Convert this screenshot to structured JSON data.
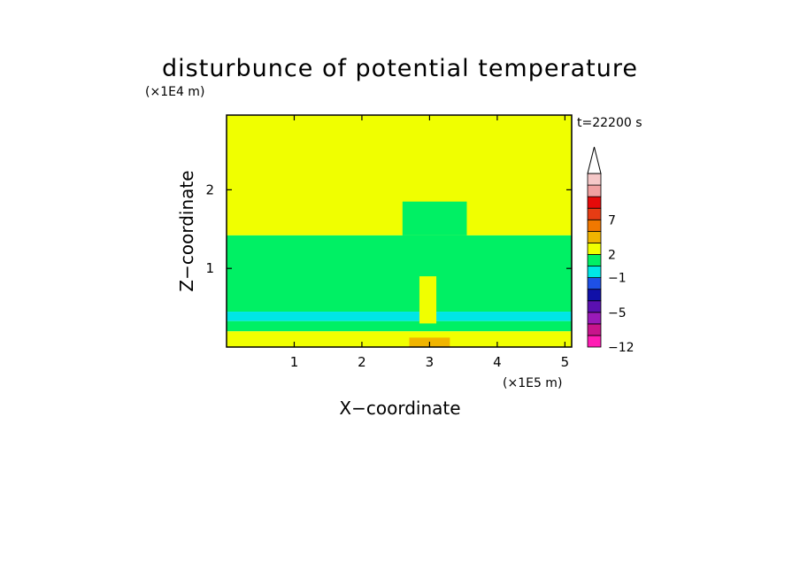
{
  "chart_data": {
    "type": "heatmap",
    "title": "disturbunce of potential temperature",
    "time_label": "t=22200 s",
    "xlabel": "X−coordinate",
    "ylabel": "Z−coordinate",
    "x_scale_label": "(×1E5 m)",
    "y_scale_label": "(×1E4 m)",
    "xlim": [
      0,
      5.1
    ],
    "ylim": [
      0,
      2.95
    ],
    "x_ticks": [
      {
        "value": 1,
        "label": "1"
      },
      {
        "value": 2,
        "label": "2"
      },
      {
        "value": 3,
        "label": "3"
      },
      {
        "value": 4,
        "label": "4"
      },
      {
        "value": 5,
        "label": "5"
      }
    ],
    "y_ticks": [
      {
        "value": 1,
        "label": "1"
      },
      {
        "value": 2,
        "label": "2"
      }
    ],
    "colorbar": {
      "levels": [
        {
          "color": "#ff1cb4",
          "label": "−12"
        },
        {
          "color": "#c8148c",
          "label": ""
        },
        {
          "color": "#9a1ab8",
          "label": ""
        },
        {
          "color": "#5a10b0",
          "label": "−5"
        },
        {
          "color": "#1010a8",
          "label": ""
        },
        {
          "color": "#1e50e6",
          "label": ""
        },
        {
          "color": "#00e6e6",
          "label": "−1"
        },
        {
          "color": "#00f064",
          "label": ""
        },
        {
          "color": "#f0ff00",
          "label": "2"
        },
        {
          "color": "#f0b400",
          "label": ""
        },
        {
          "color": "#f07800",
          "label": ""
        },
        {
          "color": "#e63c14",
          "label": "7"
        },
        {
          "color": "#e60a0a",
          "label": ""
        },
        {
          "color": "#f0a0a0",
          "label": ""
        },
        {
          "color": "#f5c8c8",
          "label": ""
        }
      ]
    },
    "regions": [
      {
        "color": "#f0ff00",
        "description": "background upper layer",
        "x": [
          0,
          5.1
        ],
        "z": [
          1.42,
          2.95
        ]
      },
      {
        "color": "#00f064",
        "description": "mid-level layer",
        "x": [
          0,
          5.1
        ],
        "z": [
          0.45,
          1.42
        ]
      },
      {
        "color": "#00e6e6",
        "description": "cool band",
        "x": [
          0,
          5.1
        ],
        "z": [
          0.33,
          0.45
        ]
      },
      {
        "color": "#00f064",
        "description": "band below cool layer",
        "x": [
          0,
          5.1
        ],
        "z": [
          0.2,
          0.33
        ]
      },
      {
        "color": "#f0ff00",
        "description": "surface layer",
        "x": [
          0,
          5.1
        ],
        "z": [
          0,
          0.2
        ]
      },
      {
        "color": "#00f064",
        "description": "plume above source",
        "x": [
          2.6,
          3.55
        ],
        "z": [
          1.42,
          1.85
        ]
      },
      {
        "color": "#f0ff00",
        "description": "warm plume core",
        "x": [
          2.85,
          3.1
        ],
        "z": [
          0.3,
          0.9
        ]
      },
      {
        "color": "#f0b400",
        "description": "near-surface warm anomaly",
        "x": [
          2.7,
          3.3
        ],
        "z": [
          0,
          0.12
        ]
      }
    ]
  }
}
